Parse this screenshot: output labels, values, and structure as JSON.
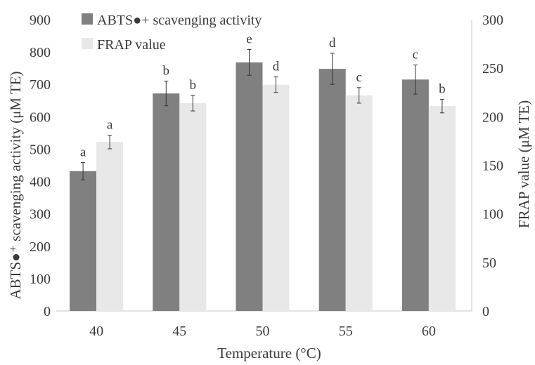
{
  "chart_data": {
    "type": "bar",
    "categories": [
      "40",
      "45",
      "50",
      "55",
      "60"
    ],
    "xlabel": "Temperature (°C)",
    "ylabel_left": "ABTS●⁺ scavenging activity (μM TE)",
    "ylabel_right": "FRAP value (μM TE)",
    "ylim_left": [
      0,
      900
    ],
    "ylim_right": [
      0,
      300
    ],
    "yticks_left": [
      "0",
      "100",
      "200",
      "300",
      "400",
      "500",
      "600",
      "700",
      "800",
      "900"
    ],
    "yticks_right": [
      "0",
      "50",
      "100",
      "150",
      "200",
      "250",
      "300"
    ],
    "grid": false,
    "legend_position": "top-left",
    "series": [
      {
        "name": "ABTS●+ scavenging activity",
        "axis": "left",
        "color": "#808080",
        "values": [
          432,
          672,
          768,
          748,
          715
        ],
        "errors": [
          27,
          38,
          40,
          48,
          45
        ],
        "labels": [
          "a",
          "b",
          "e",
          "d",
          "c"
        ]
      },
      {
        "name": "FRAP value",
        "axis": "right",
        "color": "#e8e8e8",
        "values": [
          174,
          214,
          233,
          222,
          211
        ],
        "errors": [
          7,
          8,
          8,
          8,
          7
        ],
        "labels": [
          "a",
          "b",
          "d",
          "c",
          "b"
        ]
      }
    ]
  }
}
